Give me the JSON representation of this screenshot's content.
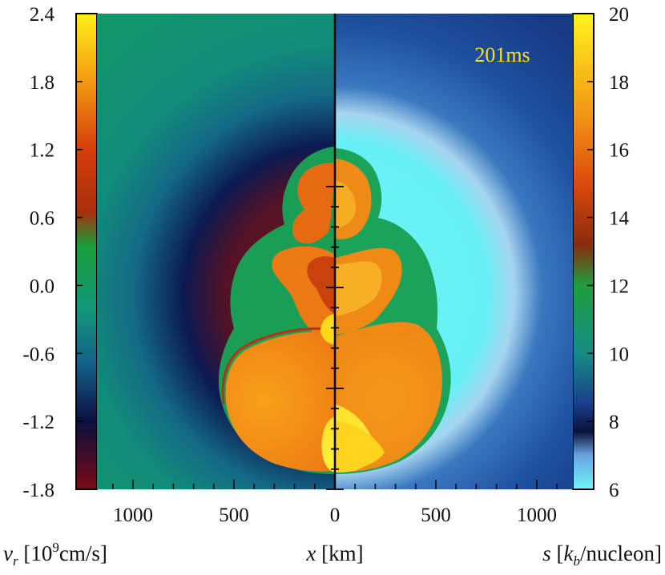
{
  "chart_data": {
    "type": "heatmap",
    "time_label": "201ms",
    "x_axis": {
      "label_var": "x",
      "label_unit": " [km]",
      "ticks": [
        {
          "value": -1000,
          "label": "1000"
        },
        {
          "value": -500,
          "label": "500"
        },
        {
          "value": 0,
          "label": "0"
        },
        {
          "value": 500,
          "label": "500"
        },
        {
          "value": 1000,
          "label": "1000"
        }
      ]
    },
    "left_colorbar": {
      "quantity_var": "v",
      "quantity_sub": "r",
      "unit_prefix": " [10",
      "unit_exp": "9",
      "unit_suffix": "cm/s]",
      "range": [
        -1.8,
        2.4
      ],
      "tick_labels": [
        "2.4",
        "1.8",
        "1.2",
        "0.6",
        "0.0",
        "-0.6",
        "-1.2",
        "-1.8"
      ],
      "tick_values": [
        2.4,
        1.8,
        1.2,
        0.6,
        0.0,
        -0.6,
        -1.2,
        -1.8
      ],
      "colormap": [
        {
          "v": -1.8,
          "color": "#7a0a14"
        },
        {
          "v": -1.2,
          "color": "#0a1040"
        },
        {
          "v": -0.7,
          "color": "#155f88"
        },
        {
          "v": -0.2,
          "color": "#13987a"
        },
        {
          "v": 0.35,
          "color": "#1a9e3a"
        },
        {
          "v": 0.65,
          "color": "#a8300c"
        },
        {
          "v": 1.2,
          "color": "#d63d0a"
        },
        {
          "v": 1.8,
          "color": "#f39a10"
        },
        {
          "v": 2.4,
          "color": "#fff11a"
        }
      ]
    },
    "right_colorbar": {
      "quantity_var": "s",
      "unit_prefix": " [",
      "unit_var": "k",
      "unit_sub": "b",
      "unit_suffix": "/nucleon]",
      "range": [
        6,
        20
      ],
      "tick_labels": [
        "20",
        "18",
        "16",
        "14",
        "12",
        "10",
        "8",
        "6"
      ],
      "tick_values": [
        20,
        18,
        16,
        14,
        12,
        10,
        8,
        6
      ],
      "colormap": [
        {
          "v": 6,
          "color": "#6cf7f9"
        },
        {
          "v": 7,
          "color": "#6aa3e0"
        },
        {
          "v": 7.7,
          "color": "#0a1236"
        },
        {
          "v": 8.5,
          "color": "#1a3d8a"
        },
        {
          "v": 10,
          "color": "#168c86"
        },
        {
          "v": 12,
          "color": "#1f9e3c"
        },
        {
          "v": 13.2,
          "color": "#8a2a0f"
        },
        {
          "v": 15,
          "color": "#dc4a0c"
        },
        {
          "v": 17,
          "color": "#f39515"
        },
        {
          "v": 20,
          "color": "#fff41d"
        }
      ]
    },
    "panels": {
      "left_background": "#15956a",
      "right_background": "#1b4a9c",
      "shock_front_color": "#16a85a",
      "hot_bubble_color": "#f28a16",
      "halo_color": "#63eff3"
    }
  }
}
